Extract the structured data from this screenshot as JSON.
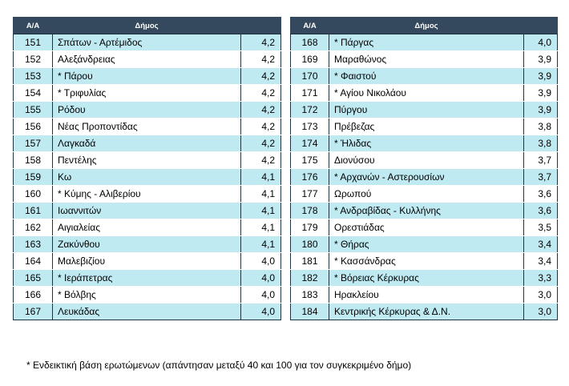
{
  "headers": {
    "num": "Α/Α",
    "name": "Δήμος"
  },
  "left_rows": [
    {
      "num": "151",
      "name": "Σπάτων - Αρτέμιδος",
      "value": "4,2"
    },
    {
      "num": "152",
      "name": "Αλεξάνδρειας",
      "value": "4,2"
    },
    {
      "num": "153",
      "name": "* Πάρου",
      "value": "4,2"
    },
    {
      "num": "154",
      "name": "* Τριφυλίας",
      "value": "4,2"
    },
    {
      "num": "155",
      "name": "Ρόδου",
      "value": "4,2"
    },
    {
      "num": "156",
      "name": "Νέας Προποντίδας",
      "value": "4,2"
    },
    {
      "num": "157",
      "name": "Λαγκαδά",
      "value": "4,2"
    },
    {
      "num": "158",
      "name": "Πεντέλης",
      "value": "4,2"
    },
    {
      "num": "159",
      "name": "Κω",
      "value": "4,1"
    },
    {
      "num": "160",
      "name": "* Κύμης - Αλιβερίου",
      "value": "4,1"
    },
    {
      "num": "161",
      "name": "Ιωαννιτών",
      "value": "4,1"
    },
    {
      "num": "162",
      "name": "Αιγιαλείας",
      "value": "4,1"
    },
    {
      "num": "163",
      "name": "Ζακύνθου",
      "value": "4,1"
    },
    {
      "num": "164",
      "name": "Μαλεβιζίου",
      "value": "4,0"
    },
    {
      "num": "165",
      "name": "* Ιεράπετρας",
      "value": "4,0"
    },
    {
      "num": "166",
      "name": "* Βόλβης",
      "value": "4,0"
    },
    {
      "num": "167",
      "name": "Λευκάδας",
      "value": "4,0"
    }
  ],
  "right_rows": [
    {
      "num": "168",
      "name": "* Πάργας",
      "value": "4,0"
    },
    {
      "num": "169",
      "name": "Μαραθώνος",
      "value": "3,9"
    },
    {
      "num": "170",
      "name": "* Φαιστού",
      "value": "3,9"
    },
    {
      "num": "171",
      "name": "* Αγίου Νικολάου",
      "value": "3,9"
    },
    {
      "num": "172",
      "name": "Πύργου",
      "value": "3,9"
    },
    {
      "num": "173",
      "name": "Πρέβεζας",
      "value": "3,8"
    },
    {
      "num": "174",
      "name": "* Ήλιδας",
      "value": "3,8"
    },
    {
      "num": "175",
      "name": "Διονύσου",
      "value": "3,7"
    },
    {
      "num": "176",
      "name": "* Αρχανών - Αστερουσίων",
      "value": "3,7"
    },
    {
      "num": "177",
      "name": "Ωρωπού",
      "value": "3,6"
    },
    {
      "num": "178",
      "name": "* Ανδραβίδας - Κυλλήνης",
      "value": "3,6"
    },
    {
      "num": "179",
      "name": "Ορεστιάδας",
      "value": "3,5"
    },
    {
      "num": "180",
      "name": "* Θήρας",
      "value": "3,4"
    },
    {
      "num": "181",
      "name": "* Κασσάνδρας",
      "value": "3,4"
    },
    {
      "num": "182",
      "name": "* Βόρειας Κέρκυρας",
      "value": "3,3"
    },
    {
      "num": "183",
      "name": "Ηρακλείου",
      "value": "3,0"
    },
    {
      "num": "184",
      "name": "Κεντρικής Κέρκυρας & Δ.Ν.",
      "value": "3,0"
    }
  ],
  "footnote": "* Ενδεικτική βάση ερωτώμενων (απάντησαν μεταξύ 40 και 100 για τον συγκεκριμένο δήμο)",
  "colors": {
    "header_bg": "#34495e",
    "row_highlight": "#bfeaf2",
    "row_plain": "#ffffff"
  }
}
